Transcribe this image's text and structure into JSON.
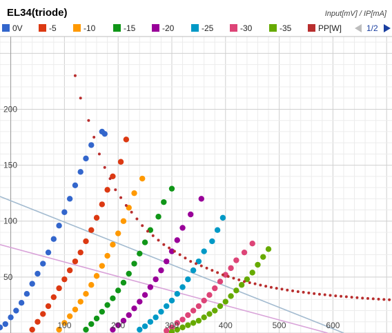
{
  "chart_data": {
    "type": "scatter",
    "title": "EL34(triode)",
    "ylabel": "Input[mV] / IP[mA]",
    "xlabel": "",
    "xlim": [
      -20,
      710
    ],
    "ylim": [
      0,
      265
    ],
    "x_ticks": [
      100,
      200,
      300,
      400,
      500,
      600
    ],
    "y_ticks": [
      50,
      100,
      150,
      200
    ],
    "grid": true,
    "legend_position": "top",
    "pager_text": "1/2",
    "series": [
      {
        "name": "0V",
        "color": "#3366cc",
        "points": [
          [
            -20,
            5
          ],
          [
            -10,
            8
          ],
          [
            0,
            14
          ],
          [
            10,
            20
          ],
          [
            20,
            27
          ],
          [
            30,
            35
          ],
          [
            40,
            44
          ],
          [
            50,
            53
          ],
          [
            60,
            62
          ],
          [
            70,
            72
          ],
          [
            80,
            84
          ],
          [
            90,
            96
          ],
          [
            100,
            108
          ],
          [
            110,
            120
          ],
          [
            120,
            132
          ],
          [
            130,
            144
          ],
          [
            140,
            156
          ],
          [
            150,
            168
          ],
          [
            170,
            180
          ],
          [
            175,
            178
          ]
        ]
      },
      {
        "name": "-5",
        "color": "#dc3912",
        "points": [
          [
            40,
            3
          ],
          [
            50,
            10
          ],
          [
            60,
            17
          ],
          [
            70,
            24
          ],
          [
            80,
            32
          ],
          [
            90,
            40
          ],
          [
            100,
            48
          ],
          [
            110,
            56
          ],
          [
            120,
            64
          ],
          [
            130,
            72
          ],
          [
            140,
            82
          ],
          [
            150,
            92
          ],
          [
            160,
            103
          ],
          [
            170,
            115
          ],
          [
            180,
            128
          ],
          [
            190,
            140
          ],
          [
            205,
            153
          ],
          [
            215,
            173
          ]
        ]
      },
      {
        "name": "-10",
        "color": "#ff9900",
        "points": [
          [
            90,
            3
          ],
          [
            100,
            9
          ],
          [
            110,
            15
          ],
          [
            120,
            21
          ],
          [
            130,
            28
          ],
          [
            140,
            35
          ],
          [
            150,
            43
          ],
          [
            160,
            51
          ],
          [
            170,
            60
          ],
          [
            180,
            69
          ],
          [
            190,
            79
          ],
          [
            200,
            89
          ],
          [
            210,
            100
          ],
          [
            220,
            112
          ],
          [
            230,
            125
          ],
          [
            245,
            138
          ]
        ]
      },
      {
        "name": "-15",
        "color": "#109618",
        "points": [
          [
            140,
            3
          ],
          [
            150,
            8
          ],
          [
            160,
            13
          ],
          [
            170,
            19
          ],
          [
            180,
            25
          ],
          [
            190,
            31
          ],
          [
            200,
            38
          ],
          [
            210,
            45
          ],
          [
            220,
            53
          ],
          [
            230,
            62
          ],
          [
            240,
            71
          ],
          [
            250,
            81
          ],
          [
            260,
            92
          ],
          [
            275,
            104
          ],
          [
            285,
            117
          ],
          [
            300,
            129
          ]
        ]
      },
      {
        "name": "-20",
        "color": "#990099",
        "points": [
          [
            190,
            3
          ],
          [
            200,
            7
          ],
          [
            210,
            11
          ],
          [
            220,
            16
          ],
          [
            230,
            22
          ],
          [
            240,
            28
          ],
          [
            250,
            34
          ],
          [
            260,
            41
          ],
          [
            270,
            48
          ],
          [
            280,
            56
          ],
          [
            290,
            64
          ],
          [
            300,
            73
          ],
          [
            310,
            83
          ],
          [
            320,
            94
          ],
          [
            335,
            106
          ],
          [
            355,
            120
          ]
        ]
      },
      {
        "name": "-25",
        "color": "#0099c6",
        "points": [
          [
            240,
            3
          ],
          [
            250,
            6
          ],
          [
            260,
            10
          ],
          [
            270,
            14
          ],
          [
            280,
            19
          ],
          [
            290,
            24
          ],
          [
            300,
            29
          ],
          [
            310,
            35
          ],
          [
            320,
            41
          ],
          [
            330,
            48
          ],
          [
            340,
            56
          ],
          [
            350,
            64
          ],
          [
            360,
            73
          ],
          [
            375,
            82
          ],
          [
            385,
            92
          ],
          [
            395,
            103
          ]
        ]
      },
      {
        "name": "-30",
        "color": "#dd4477",
        "points": [
          [
            290,
            2
          ],
          [
            300,
            5
          ],
          [
            310,
            9
          ],
          [
            320,
            12
          ],
          [
            330,
            16
          ],
          [
            340,
            20
          ],
          [
            350,
            24
          ],
          [
            360,
            29
          ],
          [
            370,
            34
          ],
          [
            380,
            40
          ],
          [
            390,
            46
          ],
          [
            400,
            52
          ],
          [
            410,
            58
          ],
          [
            420,
            65
          ],
          [
            435,
            72
          ],
          [
            450,
            80
          ]
        ]
      },
      {
        "name": "-35",
        "color": "#66aa00",
        "points": [
          [
            300,
            1
          ],
          [
            310,
            3
          ],
          [
            320,
            5
          ],
          [
            330,
            7
          ],
          [
            340,
            9
          ],
          [
            350,
            11
          ],
          [
            360,
            14
          ],
          [
            370,
            17
          ],
          [
            380,
            20
          ],
          [
            390,
            24
          ],
          [
            400,
            28
          ],
          [
            410,
            33
          ],
          [
            420,
            38
          ],
          [
            430,
            43
          ],
          [
            440,
            48
          ],
          [
            450,
            54
          ],
          [
            460,
            61
          ],
          [
            470,
            68
          ],
          [
            480,
            75
          ]
        ]
      },
      {
        "name": "PP[W]",
        "color": "#b82e2e",
        "points": [
          [
            120,
            230
          ],
          [
            130,
            210
          ],
          [
            145,
            190
          ],
          [
            155,
            175
          ],
          [
            165,
            160
          ],
          [
            175,
            148
          ],
          [
            185,
            138
          ],
          [
            195,
            128
          ],
          [
            205,
            121
          ],
          [
            215,
            114
          ],
          [
            225,
            108
          ],
          [
            235,
            102
          ],
          [
            245,
            96
          ],
          [
            255,
            91
          ],
          [
            265,
            87
          ],
          [
            275,
            83
          ],
          [
            285,
            79
          ],
          [
            295,
            76
          ],
          [
            305,
            73
          ],
          [
            315,
            70
          ],
          [
            325,
            67
          ],
          [
            335,
            64
          ],
          [
            345,
            62
          ],
          [
            355,
            60
          ],
          [
            365,
            58
          ],
          [
            375,
            56
          ],
          [
            385,
            54
          ],
          [
            395,
            52
          ],
          [
            405,
            50.5
          ],
          [
            415,
            49
          ],
          [
            425,
            47.5
          ],
          [
            435,
            46
          ],
          [
            445,
            45
          ],
          [
            455,
            44
          ],
          [
            465,
            42.8
          ],
          [
            475,
            41.8
          ],
          [
            485,
            40.8
          ],
          [
            495,
            40
          ],
          [
            505,
            39.2
          ],
          [
            515,
            38.4
          ],
          [
            525,
            37.7
          ],
          [
            535,
            37
          ],
          [
            545,
            36.4
          ],
          [
            555,
            35.8
          ],
          [
            565,
            35.2
          ],
          [
            575,
            34.7
          ],
          [
            585,
            34.2
          ],
          [
            595,
            33.7
          ],
          [
            605,
            33.2
          ],
          [
            615,
            32.8
          ],
          [
            625,
            32.4
          ],
          [
            635,
            32
          ],
          [
            645,
            31.6
          ],
          [
            655,
            31.2
          ],
          [
            665,
            30.9
          ],
          [
            675,
            30.6
          ],
          [
            685,
            30.3
          ],
          [
            695,
            30
          ],
          [
            705,
            29.7
          ]
        ]
      }
    ],
    "load_lines": [
      {
        "color": "#a3bbd0",
        "points": [
          [
            -20,
            122
          ],
          [
            620,
            0
          ]
        ]
      },
      {
        "color": "#d9a3d9",
        "points": [
          [
            -20,
            79
          ],
          [
            590,
            0
          ]
        ]
      }
    ]
  }
}
